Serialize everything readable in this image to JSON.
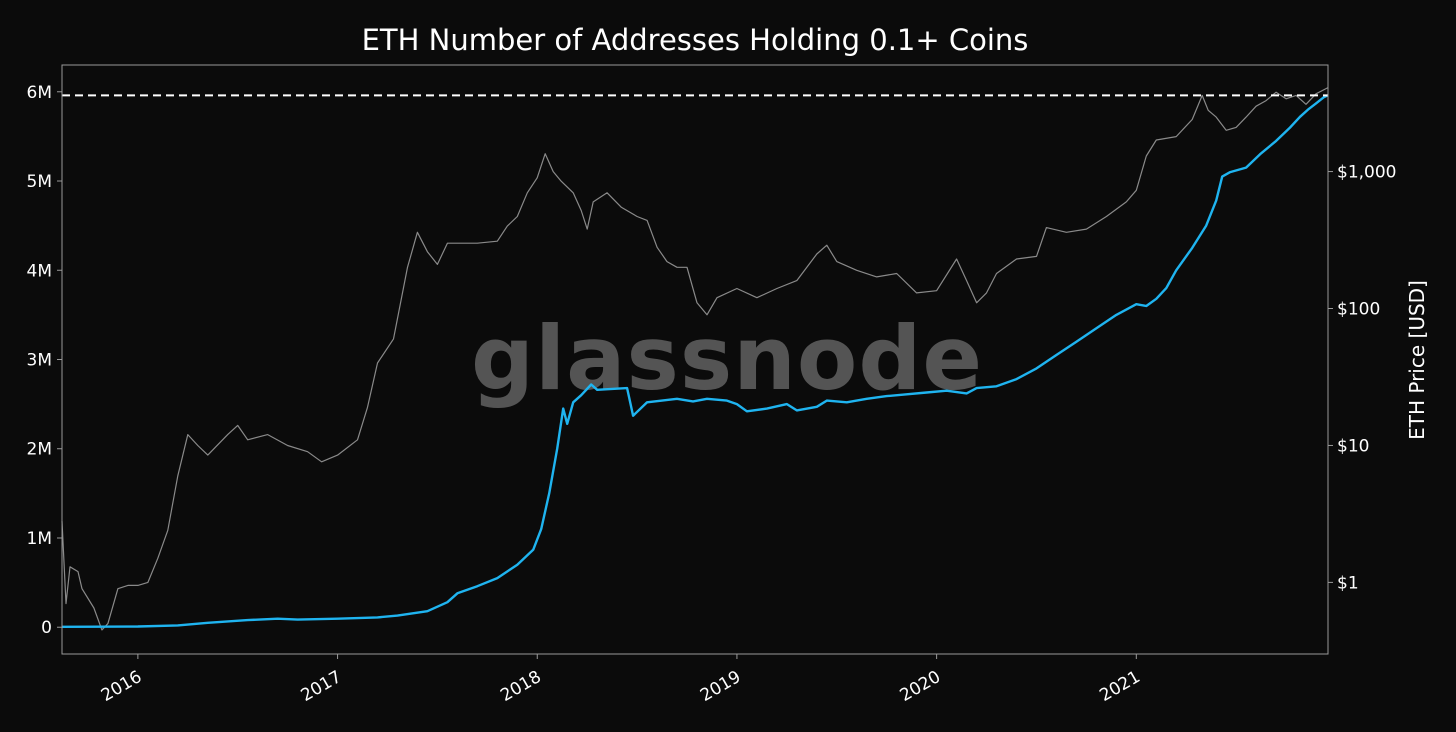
{
  "chart_data": {
    "type": "line",
    "title": "ETH Number of Addresses Holding 0.1+ Coins",
    "watermark": "glassnode",
    "xlabel": "",
    "ylabel_left": "",
    "ylabel_right": "ETH Price [USD]",
    "x_ticks": [
      "2016",
      "2017",
      "2018",
      "2019",
      "2020",
      "2021"
    ],
    "y_left_ticks": [
      {
        "value": 0,
        "label": "0"
      },
      {
        "value": 1000000,
        "label": "1M"
      },
      {
        "value": 2000000,
        "label": "2M"
      },
      {
        "value": 3000000,
        "label": "3M"
      },
      {
        "value": 4000000,
        "label": "4M"
      },
      {
        "value": 5000000,
        "label": "5M"
      },
      {
        "value": 6000000,
        "label": "6M"
      }
    ],
    "y_right_ticks": [
      {
        "value": 1,
        "label": "$1"
      },
      {
        "value": 10,
        "label": "$10"
      },
      {
        "value": 100,
        "label": "$100"
      },
      {
        "value": 1000,
        "label": "$1,000"
      }
    ],
    "x_range": [
      2015.62,
      2021.96
    ],
    "y_left_range": [
      -300000,
      6300000
    ],
    "y_right_range": [
      0.3,
      6000
    ],
    "y_right_scale": "log",
    "grid": false,
    "reference_line": {
      "value": 5960000,
      "style": "dashed",
      "axis": "left"
    },
    "colors": {
      "background": "#0b0b0b",
      "addresses": "#1fb4f0",
      "price": "#8a8a8a",
      "axis": "#9a9a9a",
      "text": "#ffffff",
      "watermark": "#5d5d5d",
      "reference": "#ffffff"
    },
    "series": [
      {
        "axis": "left",
        "points": [
          [
            2015.62,
            5000
          ],
          [
            2015.8,
            6000
          ],
          [
            2016.0,
            8000
          ],
          [
            2016.2,
            20000
          ],
          [
            2016.35,
            50000
          ],
          [
            2016.55,
            80000
          ],
          [
            2016.7,
            95000
          ],
          [
            2016.8,
            85000
          ],
          [
            2017.0,
            95000
          ],
          [
            2017.2,
            110000
          ],
          [
            2017.3,
            130000
          ],
          [
            2017.45,
            180000
          ],
          [
            2017.55,
            280000
          ],
          [
            2017.6,
            380000
          ],
          [
            2017.7,
            460000
          ],
          [
            2017.8,
            550000
          ],
          [
            2017.9,
            700000
          ],
          [
            2017.98,
            870000
          ],
          [
            2018.02,
            1100000
          ],
          [
            2018.06,
            1500000
          ],
          [
            2018.1,
            2000000
          ],
          [
            2018.13,
            2450000
          ],
          [
            2018.15,
            2280000
          ],
          [
            2018.18,
            2520000
          ],
          [
            2018.22,
            2600000
          ],
          [
            2018.27,
            2720000
          ],
          [
            2018.3,
            2660000
          ],
          [
            2018.45,
            2680000
          ],
          [
            2018.48,
            2370000
          ],
          [
            2018.55,
            2520000
          ],
          [
            2018.7,
            2560000
          ],
          [
            2018.78,
            2530000
          ],
          [
            2018.85,
            2560000
          ],
          [
            2018.95,
            2540000
          ],
          [
            2019.0,
            2500000
          ],
          [
            2019.05,
            2420000
          ],
          [
            2019.15,
            2450000
          ],
          [
            2019.25,
            2500000
          ],
          [
            2019.3,
            2430000
          ],
          [
            2019.4,
            2470000
          ],
          [
            2019.45,
            2540000
          ],
          [
            2019.55,
            2520000
          ],
          [
            2019.65,
            2560000
          ],
          [
            2019.75,
            2590000
          ],
          [
            2019.85,
            2610000
          ],
          [
            2019.95,
            2630000
          ],
          [
            2020.05,
            2650000
          ],
          [
            2020.15,
            2620000
          ],
          [
            2020.2,
            2680000
          ],
          [
            2020.3,
            2700000
          ],
          [
            2020.4,
            2780000
          ],
          [
            2020.5,
            2900000
          ],
          [
            2020.6,
            3050000
          ],
          [
            2020.7,
            3200000
          ],
          [
            2020.8,
            3350000
          ],
          [
            2020.9,
            3500000
          ],
          [
            2021.0,
            3620000
          ],
          [
            2021.05,
            3600000
          ],
          [
            2021.1,
            3680000
          ],
          [
            2021.15,
            3800000
          ],
          [
            2021.2,
            4000000
          ],
          [
            2021.28,
            4250000
          ],
          [
            2021.35,
            4500000
          ],
          [
            2021.4,
            4780000
          ],
          [
            2021.43,
            5050000
          ],
          [
            2021.47,
            5100000
          ],
          [
            2021.55,
            5150000
          ],
          [
            2021.62,
            5300000
          ],
          [
            2021.7,
            5450000
          ],
          [
            2021.77,
            5600000
          ],
          [
            2021.82,
            5720000
          ],
          [
            2021.86,
            5800000
          ],
          [
            2021.9,
            5870000
          ],
          [
            2021.94,
            5940000
          ],
          [
            2021.96,
            5960000
          ]
        ]
      },
      {
        "axis": "right",
        "points": [
          [
            2015.62,
            2.8
          ],
          [
            2015.64,
            0.7
          ],
          [
            2015.66,
            1.3
          ],
          [
            2015.7,
            1.2
          ],
          [
            2015.72,
            0.9
          ],
          [
            2015.78,
            0.65
          ],
          [
            2015.82,
            0.45
          ],
          [
            2015.85,
            0.5
          ],
          [
            2015.9,
            0.9
          ],
          [
            2015.95,
            0.95
          ],
          [
            2016.0,
            0.95
          ],
          [
            2016.05,
            1.0
          ],
          [
            2016.1,
            1.5
          ],
          [
            2016.15,
            2.4
          ],
          [
            2016.2,
            6.0
          ],
          [
            2016.25,
            12.0
          ],
          [
            2016.3,
            10.0
          ],
          [
            2016.35,
            8.5
          ],
          [
            2016.45,
            12.0
          ],
          [
            2016.5,
            14.0
          ],
          [
            2016.55,
            11.0
          ],
          [
            2016.65,
            12.0
          ],
          [
            2016.75,
            10.0
          ],
          [
            2016.85,
            9.0
          ],
          [
            2016.92,
            7.6
          ],
          [
            2017.0,
            8.5
          ],
          [
            2017.1,
            11.0
          ],
          [
            2017.15,
            19.0
          ],
          [
            2017.2,
            40.0
          ],
          [
            2017.28,
            60.0
          ],
          [
            2017.35,
            200.0
          ],
          [
            2017.4,
            360.0
          ],
          [
            2017.45,
            260.0
          ],
          [
            2017.5,
            210.0
          ],
          [
            2017.55,
            300.0
          ],
          [
            2017.6,
            300.0
          ],
          [
            2017.7,
            300.0
          ],
          [
            2017.8,
            310.0
          ],
          [
            2017.85,
            400.0
          ],
          [
            2017.9,
            470.0
          ],
          [
            2017.95,
            700.0
          ],
          [
            2018.0,
            900.0
          ],
          [
            2018.04,
            1350.0
          ],
          [
            2018.08,
            1000.0
          ],
          [
            2018.12,
            850.0
          ],
          [
            2018.18,
            700.0
          ],
          [
            2018.22,
            520.0
          ],
          [
            2018.25,
            380.0
          ],
          [
            2018.28,
            600.0
          ],
          [
            2018.35,
            700.0
          ],
          [
            2018.42,
            550.0
          ],
          [
            2018.5,
            470.0
          ],
          [
            2018.55,
            440.0
          ],
          [
            2018.6,
            280.0
          ],
          [
            2018.65,
            220.0
          ],
          [
            2018.7,
            200.0
          ],
          [
            2018.75,
            200.0
          ],
          [
            2018.8,
            110.0
          ],
          [
            2018.85,
            90.0
          ],
          [
            2018.9,
            120.0
          ],
          [
            2019.0,
            140.0
          ],
          [
            2019.1,
            120.0
          ],
          [
            2019.2,
            140.0
          ],
          [
            2019.3,
            160.0
          ],
          [
            2019.4,
            250.0
          ],
          [
            2019.45,
            290.0
          ],
          [
            2019.5,
            220.0
          ],
          [
            2019.6,
            190.0
          ],
          [
            2019.7,
            170.0
          ],
          [
            2019.8,
            180.0
          ],
          [
            2019.9,
            130.0
          ],
          [
            2020.0,
            135.0
          ],
          [
            2020.1,
            230.0
          ],
          [
            2020.15,
            160.0
          ],
          [
            2020.2,
            110.0
          ],
          [
            2020.25,
            130.0
          ],
          [
            2020.3,
            180.0
          ],
          [
            2020.4,
            230.0
          ],
          [
            2020.5,
            240.0
          ],
          [
            2020.55,
            390.0
          ],
          [
            2020.65,
            360.0
          ],
          [
            2020.75,
            380.0
          ],
          [
            2020.85,
            470.0
          ],
          [
            2020.95,
            600.0
          ],
          [
            2021.0,
            730.0
          ],
          [
            2021.05,
            1300.0
          ],
          [
            2021.1,
            1700.0
          ],
          [
            2021.2,
            1800.0
          ],
          [
            2021.28,
            2400.0
          ],
          [
            2021.33,
            3600.0
          ],
          [
            2021.36,
            2800.0
          ],
          [
            2021.4,
            2500.0
          ],
          [
            2021.45,
            2000.0
          ],
          [
            2021.5,
            2100.0
          ],
          [
            2021.55,
            2500.0
          ],
          [
            2021.6,
            3000.0
          ],
          [
            2021.65,
            3300.0
          ],
          [
            2021.7,
            3800.0
          ],
          [
            2021.75,
            3400.0
          ],
          [
            2021.8,
            3600.0
          ],
          [
            2021.85,
            3100.0
          ],
          [
            2021.9,
            3700.0
          ],
          [
            2021.96,
            4100.0
          ]
        ]
      }
    ]
  }
}
